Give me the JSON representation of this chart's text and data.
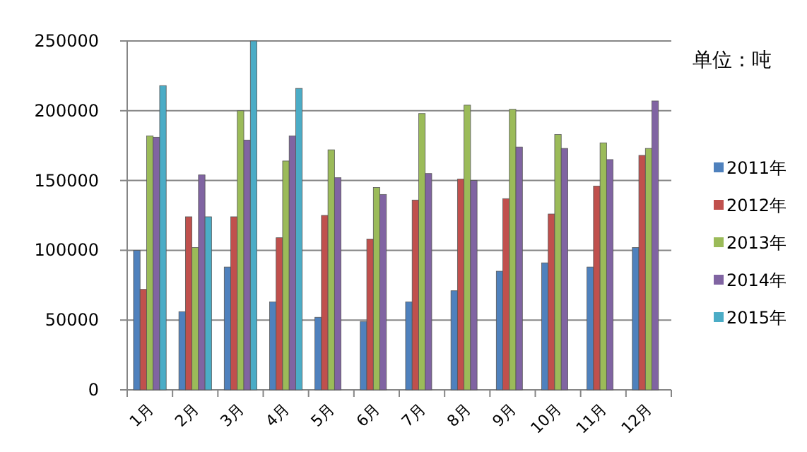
{
  "chart_data": {
    "type": "bar",
    "categories": [
      "1月",
      "2月",
      "3月",
      "4月",
      "5月",
      "6月",
      "7月",
      "8月",
      "9月",
      "10月",
      "11月",
      "12月"
    ],
    "series": [
      {
        "name": "2011年",
        "color": "#4f81bd",
        "values": [
          100000,
          56000,
          88000,
          63000,
          52000,
          49000,
          63000,
          71000,
          85000,
          91000,
          88000,
          102000
        ]
      },
      {
        "name": "2012年",
        "color": "#c0504d",
        "values": [
          72000,
          124000,
          124000,
          109000,
          125000,
          108000,
          136000,
          151000,
          137000,
          126000,
          146000,
          168000
        ]
      },
      {
        "name": "2013年",
        "color": "#9bbb59",
        "values": [
          182000,
          102000,
          200000,
          164000,
          172000,
          145000,
          198000,
          204000,
          201000,
          183000,
          177000,
          173000
        ]
      },
      {
        "name": "2014年",
        "color": "#8064a2",
        "values": [
          181000,
          154000,
          179000,
          182000,
          152000,
          140000,
          155000,
          150000,
          174000,
          173000,
          165000,
          207000
        ]
      },
      {
        "name": "2015年",
        "color": "#4bacc6",
        "values": [
          218000,
          124000,
          250000,
          216000,
          null,
          null,
          null,
          null,
          null,
          null,
          null,
          null
        ]
      }
    ],
    "ylim": [
      0,
      250000
    ],
    "yticks": [
      0,
      50000,
      100000,
      150000,
      200000,
      250000
    ],
    "grid": "y",
    "legend": "right",
    "annotations": [
      "单位：吨"
    ]
  }
}
